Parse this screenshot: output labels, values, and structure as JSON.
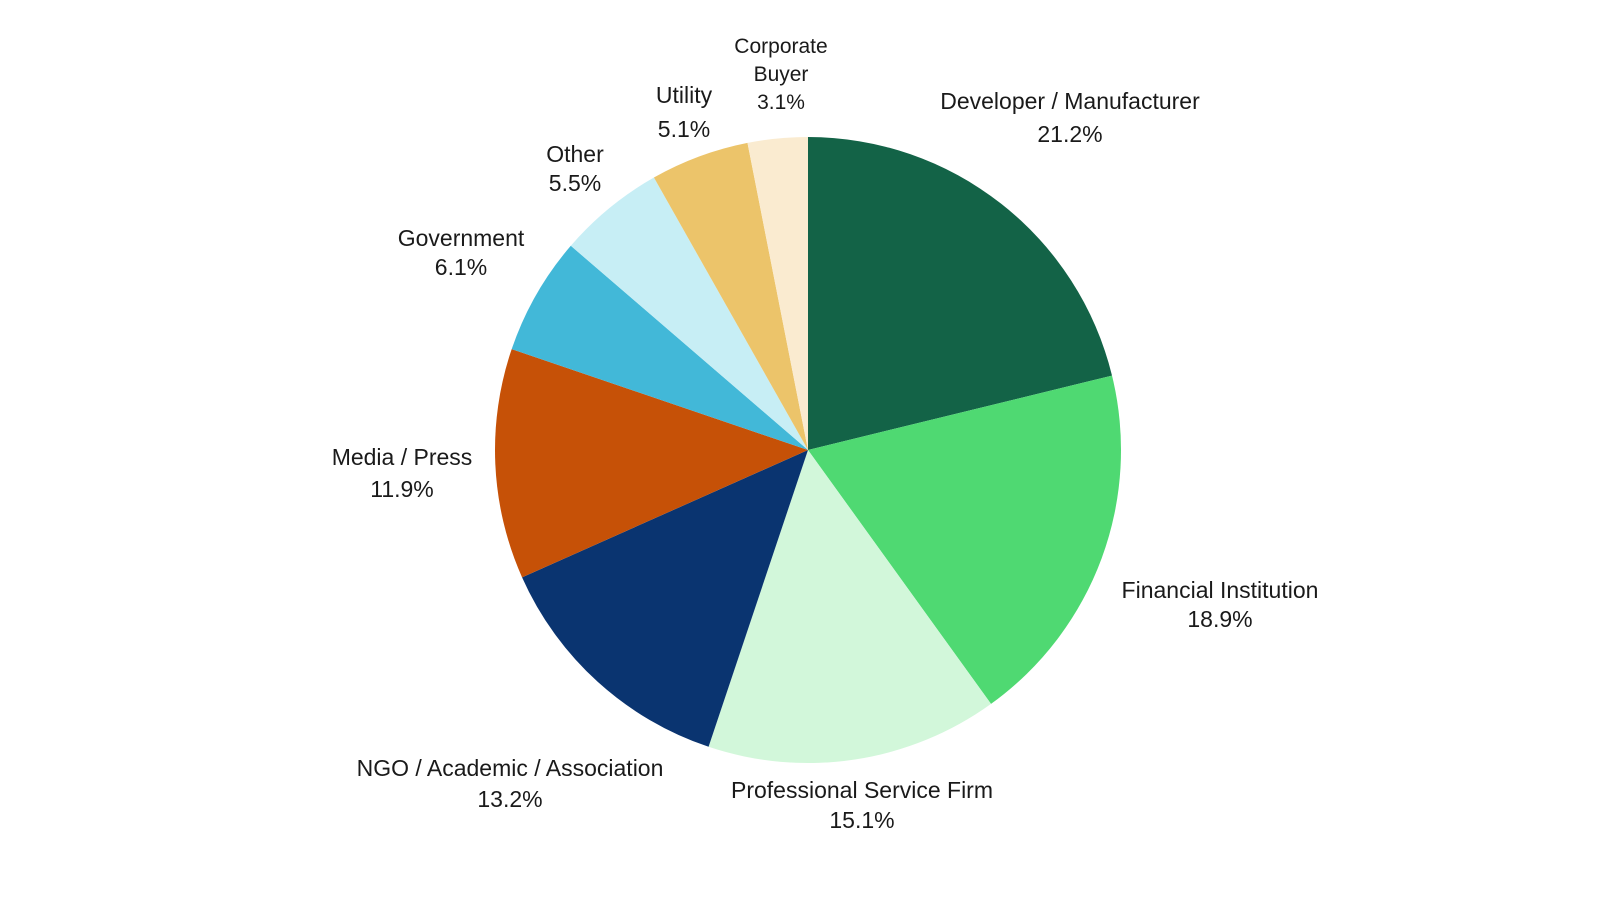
{
  "chart_data": {
    "type": "pie",
    "title": "",
    "start_angle": "12 o'clock",
    "direction": "clockwise",
    "legend": "none",
    "slices": [
      {
        "label": "Developer / Manufacturer",
        "value": 21.2,
        "value_label": "21.2%",
        "color": "#136347"
      },
      {
        "label": "Financial Institution",
        "value": 18.9,
        "value_label": "18.9%",
        "color": "#4fd972"
      },
      {
        "label": "Professional Service Firm",
        "value": 15.1,
        "value_label": "15.1%",
        "color": "#d2f7da"
      },
      {
        "label": "NGO / Academic / Association",
        "value": 13.2,
        "value_label": "13.2%",
        "color": "#0a3470"
      },
      {
        "label": "Media / Press",
        "value": 11.9,
        "value_label": "11.9%",
        "color": "#c65107"
      },
      {
        "label": "Government",
        "value": 6.1,
        "value_label": "6.1%",
        "color": "#42b8d8"
      },
      {
        "label": "Other",
        "value": 5.5,
        "value_label": "5.5%",
        "color": "#c7eef5"
      },
      {
        "label": "Utility",
        "value": 5.1,
        "value_label": "5.1%",
        "color": "#ecc46a"
      },
      {
        "label": "Corporate Buyer",
        "value": 3.1,
        "value_label": "3.1%",
        "color": "#faebd0"
      }
    ]
  }
}
